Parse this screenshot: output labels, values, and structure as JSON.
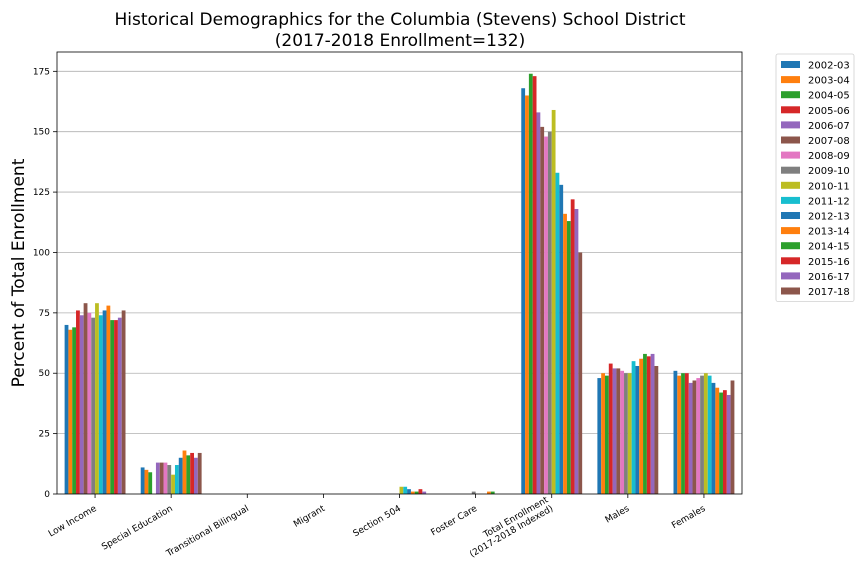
{
  "chart_data": {
    "type": "bar",
    "title": "Historical Demographics for the Columbia (Stevens) School District",
    "subtitle": "(2017-2018 Enrollment=132)",
    "xlabel": "",
    "ylabel": "Percent of Total Enrollment",
    "ylim": [
      0,
      183
    ],
    "yticks": [
      0,
      25,
      50,
      75,
      100,
      125,
      150,
      175
    ],
    "grid": "horizontal",
    "legend_position": "outside-right",
    "categories": [
      "Low Income",
      "Special Education",
      "Transitional Bilingual",
      "Migrant",
      "Section 504",
      "Foster Care",
      "Total Enrollment\n(2017-2018 Indexed)",
      "Males",
      "Females"
    ],
    "series": [
      {
        "name": "2002-03",
        "color": "#1f77b4",
        "values": [
          70,
          11,
          0,
          0,
          0,
          0,
          168,
          48,
          51
        ]
      },
      {
        "name": "2003-04",
        "color": "#ff7f0e",
        "values": [
          68,
          10,
          0,
          0,
          0,
          0,
          165,
          50,
          49
        ]
      },
      {
        "name": "2004-05",
        "color": "#2ca02c",
        "values": [
          69,
          9,
          0,
          0,
          0,
          0,
          174,
          49,
          50
        ]
      },
      {
        "name": "2005-06",
        "color": "#d62728",
        "values": [
          76,
          0,
          0,
          0,
          0,
          0,
          173,
          54,
          50
        ]
      },
      {
        "name": "2006-07",
        "color": "#9467bd",
        "values": [
          74,
          13,
          0,
          0,
          0,
          0,
          158,
          52,
          46
        ]
      },
      {
        "name": "2007-08",
        "color": "#8c564b",
        "values": [
          79,
          13,
          0,
          0,
          0,
          0,
          152,
          52,
          47
        ]
      },
      {
        "name": "2008-09",
        "color": "#e377c2",
        "values": [
          75,
          13,
          0,
          0,
          0,
          0,
          148,
          51,
          48
        ]
      },
      {
        "name": "2009-10",
        "color": "#7f7f7f",
        "values": [
          73,
          12,
          0,
          0,
          0,
          1,
          150,
          50,
          49
        ]
      },
      {
        "name": "2010-11",
        "color": "#bcbd22",
        "values": [
          79,
          8,
          0,
          0,
          3,
          0,
          159,
          50,
          50
        ]
      },
      {
        "name": "2011-12",
        "color": "#17becf",
        "values": [
          74,
          12,
          0,
          0,
          3,
          0,
          133,
          55,
          49
        ]
      },
      {
        "name": "2012-13",
        "color": "#1f77b4",
        "values": [
          76,
          15,
          0,
          0,
          2,
          0,
          128,
          53,
          46
        ]
      },
      {
        "name": "2013-14",
        "color": "#ff7f0e",
        "values": [
          78,
          18,
          0,
          0,
          1,
          1,
          116,
          56,
          44
        ]
      },
      {
        "name": "2014-15",
        "color": "#2ca02c",
        "values": [
          72,
          16,
          0,
          0,
          1,
          1,
          113,
          58,
          42
        ]
      },
      {
        "name": "2015-16",
        "color": "#d62728",
        "values": [
          72,
          17,
          0,
          0,
          2,
          0,
          122,
          57,
          43
        ]
      },
      {
        "name": "2016-17",
        "color": "#9467bd",
        "values": [
          73,
          15,
          0,
          0,
          1,
          0,
          118,
          58,
          41
        ]
      },
      {
        "name": "2017-18",
        "color": "#8c564b",
        "values": [
          76,
          17,
          0,
          0,
          0,
          0,
          100,
          53,
          47
        ]
      }
    ]
  }
}
